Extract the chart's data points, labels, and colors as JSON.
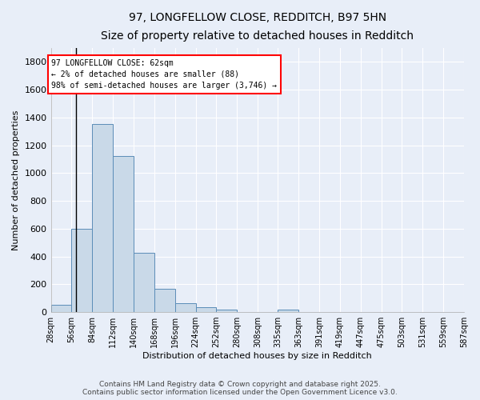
{
  "title": "97, LONGFELLOW CLOSE, REDDITCH, B97 5HN",
  "subtitle": "Size of property relative to detached houses in Redditch",
  "xlabel": "Distribution of detached houses by size in Redditch",
  "ylabel": "Number of detached properties",
  "bar_values": [
    50,
    600,
    1350,
    1125,
    425,
    170,
    65,
    35,
    15,
    0,
    0,
    15,
    0,
    0,
    0,
    0,
    0,
    0,
    0,
    0
  ],
  "bin_edges": [
    28,
    56,
    84,
    112,
    140,
    168,
    196,
    224,
    252,
    280,
    308,
    335,
    363,
    391,
    419,
    447,
    475,
    503,
    531,
    559,
    587
  ],
  "bar_color": "#c9d9e8",
  "bar_edge_color": "#5b8db8",
  "property_size": 62,
  "annotation_text": "97 LONGFELLOW CLOSE: 62sqm\n← 2% of detached houses are smaller (88)\n98% of semi-detached houses are larger (3,746) →",
  "annotation_box_facecolor": "white",
  "annotation_box_edgecolor": "red",
  "vline_color": "black",
  "ylim": [
    0,
    1900
  ],
  "yticks": [
    0,
    200,
    400,
    600,
    800,
    1000,
    1200,
    1400,
    1600,
    1800
  ],
  "bg_color": "#e8eef8",
  "grid_color": "white",
  "footer_line1": "Contains HM Land Registry data © Crown copyright and database right 2025.",
  "footer_line2": "Contains public sector information licensed under the Open Government Licence v3.0.",
  "title_fontsize": 10,
  "subtitle_fontsize": 9,
  "axis_label_fontsize": 8,
  "tick_label_fontsize": 7,
  "footer_fontsize": 6.5
}
